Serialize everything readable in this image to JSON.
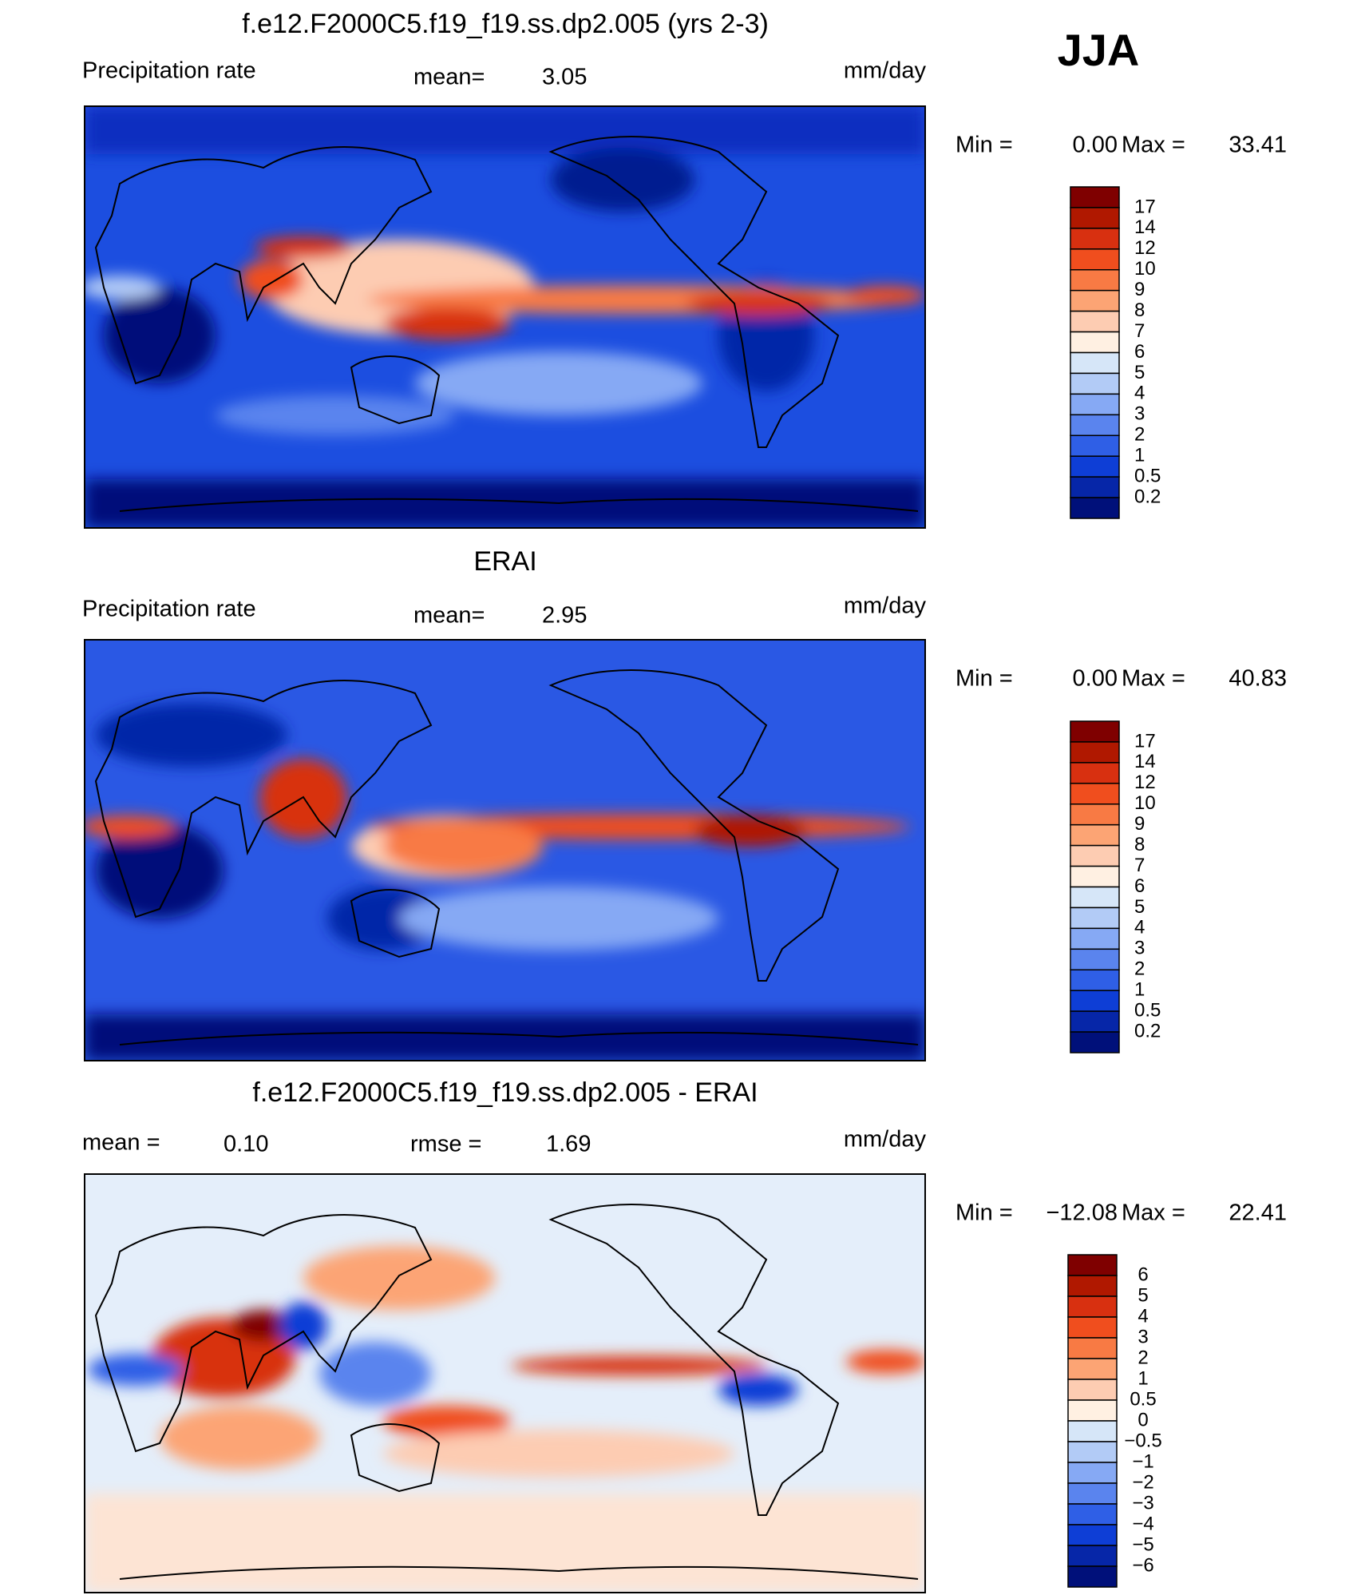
{
  "figure": {
    "season": "JJA"
  },
  "panels": [
    {
      "title": "f.e12.F2000C5.f19_f19.ss.dp2.005 (yrs 2-3)",
      "left_label": "Precipitation rate",
      "mean_label": "mean=",
      "mean_value": "3.05",
      "units": "mm/day",
      "min_label": "Min =",
      "min_value": "0.00",
      "max_label": "Max =",
      "max_value": "33.41",
      "colorbar": {
        "labels": [
          "17",
          "14",
          "12",
          "10",
          "9",
          "8",
          "7",
          "6",
          "5",
          "4",
          "3",
          "2",
          "1",
          "0.5",
          "0.2"
        ],
        "colors": [
          "#7f0000",
          "#b01800",
          "#d83010",
          "#f04e1e",
          "#f87a44",
          "#fca474",
          "#fdccb2",
          "#fff0e2",
          "#d6e6f8",
          "#b2cbf6",
          "#86a9f4",
          "#5a84ee",
          "#2f5fe6",
          "#0e3ed6",
          "#0626a8",
          "#00107a"
        ]
      }
    },
    {
      "title": "ERAI",
      "left_label": "Precipitation rate",
      "mean_label": "mean=",
      "mean_value": "2.95",
      "units": "mm/day",
      "min_label": "Min =",
      "min_value": "0.00",
      "max_label": "Max =",
      "max_value": "40.83",
      "colorbar": {
        "labels": [
          "17",
          "14",
          "12",
          "10",
          "9",
          "8",
          "7",
          "6",
          "5",
          "4",
          "3",
          "2",
          "1",
          "0.5",
          "0.2"
        ],
        "colors": [
          "#7f0000",
          "#b01800",
          "#d83010",
          "#f04e1e",
          "#f87a44",
          "#fca474",
          "#fdccb2",
          "#fff0e2",
          "#d6e6f8",
          "#b2cbf6",
          "#86a9f4",
          "#5a84ee",
          "#2f5fe6",
          "#0e3ed6",
          "#0626a8",
          "#00107a"
        ]
      }
    },
    {
      "title": "f.e12.F2000C5.f19_f19.ss.dp2.005 - ERAI",
      "left_label": "mean =",
      "mean_value": "0.10",
      "rmse_label": "rmse =",
      "rmse_value": "1.69",
      "units": "mm/day",
      "min_label": "Min =",
      "min_value": "−12.08",
      "max_label": "Max =",
      "max_value": "22.41",
      "colorbar": {
        "labels": [
          "6",
          "5",
          "4",
          "3",
          "2",
          "1",
          "0.5",
          "0",
          "−0.5",
          "−1",
          "−2",
          "−3",
          "−4",
          "−5",
          "−6"
        ],
        "colors": [
          "#7f0000",
          "#b01800",
          "#d83010",
          "#f04e1e",
          "#f87a44",
          "#fca474",
          "#fdccb2",
          "#fff0e2",
          "#d6e6f8",
          "#b2cbf6",
          "#86a9f4",
          "#5a84ee",
          "#2f5fe6",
          "#0e3ed6",
          "#0626a8",
          "#00107a"
        ]
      }
    }
  ]
}
